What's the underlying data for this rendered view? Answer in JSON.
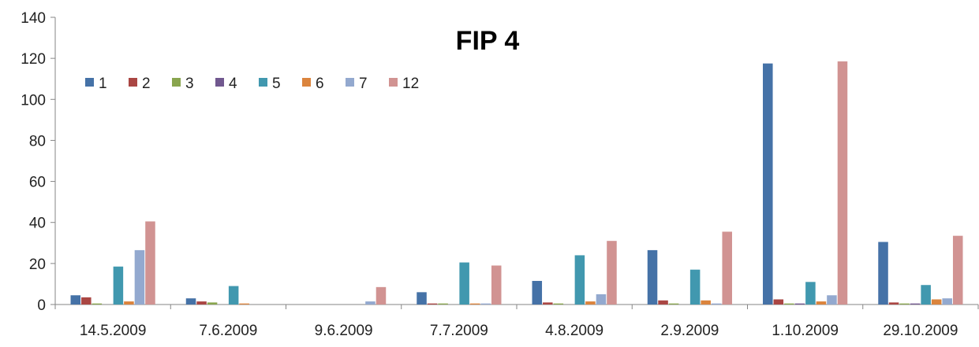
{
  "chart_data": {
    "type": "bar",
    "title": "FIP 4",
    "xlabel": "",
    "ylabel": "",
    "ylim": [
      0,
      140
    ],
    "yticks": [
      0,
      20,
      40,
      60,
      80,
      100,
      120,
      140
    ],
    "grid": false,
    "legend_position": "top-left",
    "categories": [
      "14.5.2009",
      "7.6.2009",
      "9.6.2009",
      "7.7.2009",
      "4.8.2009",
      "2.9.2009",
      "1.10.2009",
      "29.10.2009"
    ],
    "series": [
      {
        "name": "1",
        "color": "#4572A7",
        "values": [
          4.5,
          3,
          0,
          6,
          11.5,
          26.5,
          117.5,
          30.5
        ]
      },
      {
        "name": "2",
        "color": "#AA4643",
        "values": [
          3.5,
          1.5,
          0,
          0.5,
          1,
          2,
          2.5,
          1
        ]
      },
      {
        "name": "3",
        "color": "#89A54E",
        "values": [
          0.5,
          1,
          0,
          0.5,
          0.5,
          0.5,
          0.5,
          0.5
        ]
      },
      {
        "name": "4",
        "color": "#71588F",
        "values": [
          0,
          0,
          0,
          0,
          0,
          0,
          0.5,
          0.5
        ]
      },
      {
        "name": "5",
        "color": "#4198AF",
        "values": [
          18.5,
          9,
          0,
          20.5,
          24,
          17,
          11,
          9.5
        ]
      },
      {
        "name": "6",
        "color": "#DB843D",
        "values": [
          1.5,
          0.5,
          0,
          0.5,
          1.5,
          2,
          1.5,
          2.5
        ]
      },
      {
        "name": "7",
        "color": "#93A9CF",
        "values": [
          26.5,
          0,
          1.5,
          0.5,
          5,
          0.5,
          4.5,
          3
        ]
      },
      {
        "name": "12",
        "color": "#D19392",
        "values": [
          40.5,
          0,
          8.5,
          19,
          31,
          35.5,
          118.5,
          33.5
        ]
      }
    ]
  }
}
